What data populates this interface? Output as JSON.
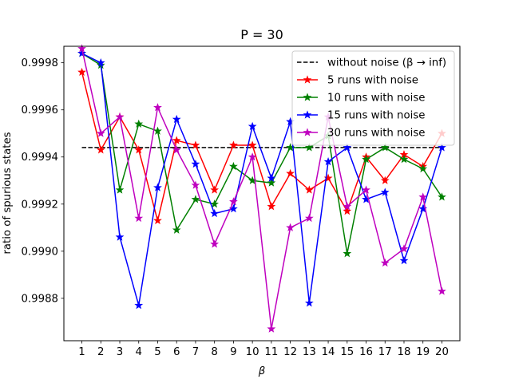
{
  "chart_data": {
    "type": "line",
    "title": "P = 30",
    "xlabel": "β",
    "ylabel": "ratio of spurious states",
    "xlim": [
      0.05,
      20.95
    ],
    "ylim": [
      0.99862,
      0.99987
    ],
    "xticks": [
      1,
      2,
      3,
      4,
      5,
      6,
      7,
      8,
      9,
      10,
      11,
      12,
      13,
      14,
      15,
      16,
      17,
      18,
      19,
      20
    ],
    "yticks": [
      0.9988,
      0.999,
      0.9992,
      0.9994,
      0.9996,
      0.9998
    ],
    "ytick_labels": [
      "0.9988",
      "0.9990",
      "0.9992",
      "0.9994",
      "0.9996",
      "0.9998"
    ],
    "grid": false,
    "legend_position": "top-right",
    "baseline": {
      "name": "without noise (β → inf)",
      "value": 0.99944,
      "x_range": [
        1,
        20
      ],
      "color": "#000000",
      "style": "dashed"
    },
    "x": [
      1,
      2,
      3,
      4,
      5,
      6,
      7,
      8,
      9,
      10,
      11,
      12,
      13,
      14,
      15,
      16,
      17,
      18,
      19,
      20
    ],
    "series": [
      {
        "name": "5 runs with noise",
        "color": "#ff0000",
        "values": [
          0.99976,
          0.99943,
          0.99957,
          0.99943,
          0.99913,
          0.99947,
          0.99945,
          0.99926,
          0.99945,
          0.99945,
          0.99919,
          0.99933,
          0.99926,
          0.99931,
          0.99917,
          0.9994,
          0.9993,
          0.99941,
          0.99936,
          0.9995
        ]
      },
      {
        "name": "10 runs with noise",
        "color": "#008000",
        "values": [
          0.99984,
          0.99979,
          0.99926,
          0.99954,
          0.99951,
          0.99909,
          0.99922,
          0.9992,
          0.99936,
          0.9993,
          0.99929,
          0.99944,
          0.99944,
          0.99949,
          0.99899,
          0.99939,
          0.99944,
          0.99939,
          0.99935,
          0.99923
        ]
      },
      {
        "name": "15 runs with noise",
        "color": "#0000ff",
        "values": [
          0.99984,
          0.9998,
          0.99906,
          0.99877,
          0.99927,
          0.99956,
          0.99937,
          0.99916,
          0.99918,
          0.99953,
          0.99931,
          0.99955,
          0.99878,
          0.99938,
          0.99944,
          0.99922,
          0.99925,
          0.99896,
          0.99918,
          0.99944
        ]
      },
      {
        "name": "30 runs with noise",
        "color": "#bf00bf",
        "values": [
          0.99986,
          0.9995,
          0.99957,
          0.99914,
          0.99961,
          0.99943,
          0.99928,
          0.99903,
          0.99921,
          0.9994,
          0.99867,
          0.9991,
          0.99914,
          0.99957,
          0.99919,
          0.99926,
          0.99895,
          0.99901,
          0.99923,
          0.99883
        ]
      }
    ]
  }
}
